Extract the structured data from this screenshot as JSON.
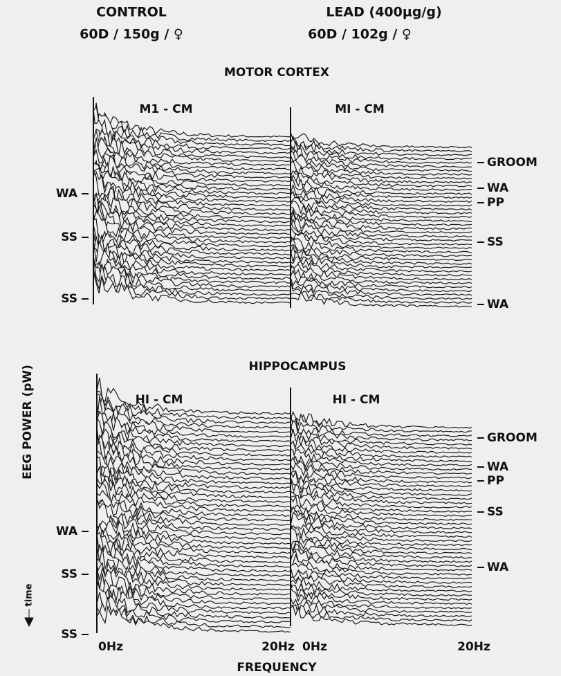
{
  "header": {
    "control": {
      "title": "CONTROL",
      "subtitle": "60D / 150g / ♀"
    },
    "lead": {
      "title": "LEAD (400µg/g)",
      "subtitle": "60D / 102g / ♀"
    }
  },
  "panels": [
    {
      "title": "MOTOR CORTEX",
      "left": {
        "label": "M1 - CM",
        "markers": [
          "WA",
          "SS",
          "SS"
        ]
      },
      "right": {
        "label": "MI - CM",
        "markers": [
          "GROOM",
          "WA",
          "PP",
          "SS",
          "WA"
        ]
      }
    },
    {
      "title": "HIPPOCAMPUS",
      "left": {
        "label": "HI - CM",
        "markers": [
          "WA",
          "SS",
          "SS"
        ]
      },
      "right": {
        "label": "HI - CM",
        "markers": [
          "GROOM",
          "WA",
          "PP",
          "SS",
          "WA"
        ]
      }
    }
  ],
  "y_axis": {
    "label": "EEG POWER (pW)",
    "time": "time"
  },
  "x_axis": {
    "ticks": [
      "0Hz",
      "20Hz",
      "0Hz",
      "20Hz"
    ],
    "label": "FREQUENCY"
  }
}
